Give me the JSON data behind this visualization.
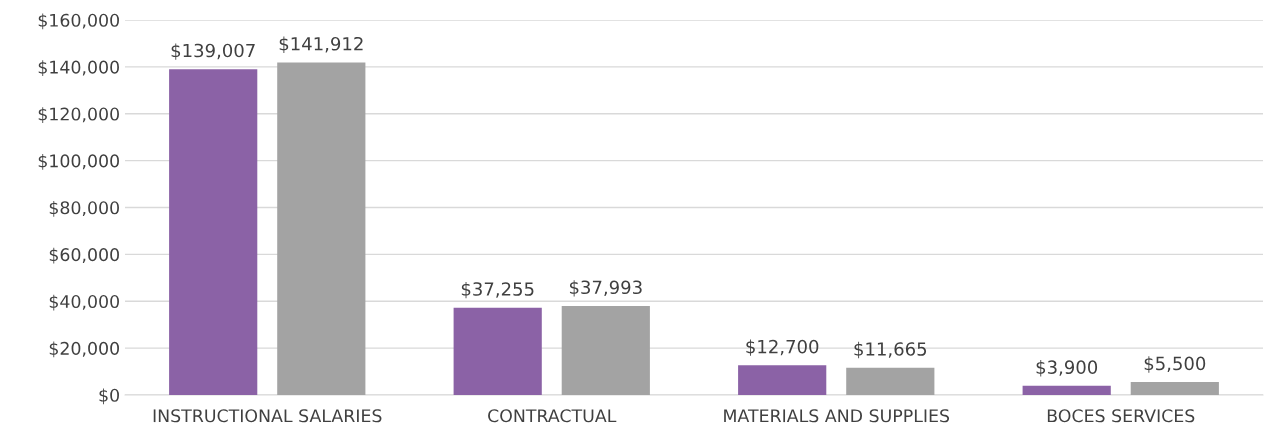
{
  "chart_data": {
    "type": "bar",
    "categories": [
      "INSTRUCTIONAL SALARIES",
      "CONTRACTUAL",
      "MATERIALS AND SUPPLIES",
      "BOCES SERVICES"
    ],
    "series": [
      {
        "color": "#8b62a6",
        "values": [
          139007,
          37255,
          12700,
          3900
        ],
        "value_labels": [
          "$139,007",
          "$37,255",
          "$12,700",
          "$3,900"
        ]
      },
      {
        "color": "#a3a3a3",
        "values": [
          141912,
          37993,
          11665,
          5500
        ],
        "value_labels": [
          "$141,912",
          "$37,993",
          "$11,665",
          "$5,500"
        ]
      }
    ],
    "ylim": [
      0,
      160000
    ],
    "yticks": [
      {
        "value": 0,
        "label": "$0"
      },
      {
        "value": 20000,
        "label": "$20,000"
      },
      {
        "value": 40000,
        "label": "$40,000"
      },
      {
        "value": 60000,
        "label": "$60,000"
      },
      {
        "value": 80000,
        "label": "$80,000"
      },
      {
        "value": 100000,
        "label": "$100,000"
      },
      {
        "value": 120000,
        "label": "$120,000"
      },
      {
        "value": 140000,
        "label": "$140,000"
      },
      {
        "value": 160000,
        "label": "$160,000"
      }
    ],
    "grid": "y"
  }
}
